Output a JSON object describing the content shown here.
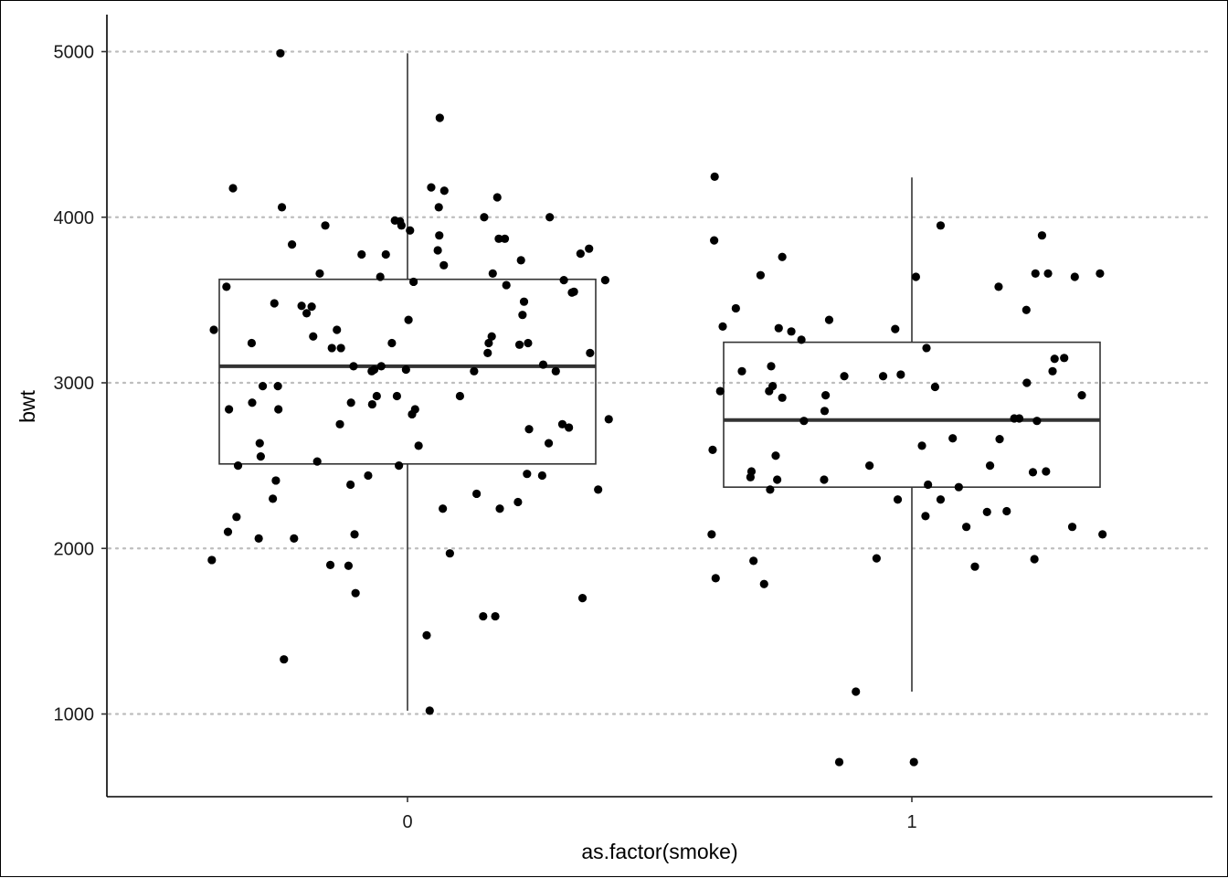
{
  "chart_data": {
    "type": "boxplot",
    "xlabel": "as.factor(smoke)",
    "ylabel": "bwt",
    "ylim": [
      500,
      5200
    ],
    "yticks": [
      1000,
      2000,
      3000,
      4000,
      5000
    ],
    "categories": [
      "0",
      "1"
    ],
    "grid": "horizontal-dotted",
    "boxes": [
      {
        "category": "0",
        "whisker_low": 1020,
        "q1": 2510,
        "median": 3100,
        "q3": 3625,
        "whisker_high": 4990
      },
      {
        "category": "1",
        "whisker_low": 1135,
        "q1": 2370,
        "median": 2775,
        "q3": 3245,
        "whisker_high": 4240
      }
    ],
    "points": [
      {
        "x": -0.388,
        "y": 1930
      },
      {
        "x": -0.384,
        "y": 3320
      },
      {
        "x": -0.359,
        "y": 3580
      },
      {
        "x": -0.356,
        "y": 2100
      },
      {
        "x": -0.354,
        "y": 2840
      },
      {
        "x": -0.346,
        "y": 4175
      },
      {
        "x": -0.339,
        "y": 2190
      },
      {
        "x": -0.336,
        "y": 2500
      },
      {
        "x": -0.309,
        "y": 3240
      },
      {
        "x": -0.308,
        "y": 2880
      },
      {
        "x": -0.295,
        "y": 2060
      },
      {
        "x": -0.293,
        "y": 2635
      },
      {
        "x": -0.291,
        "y": 2555
      },
      {
        "x": -0.287,
        "y": 2980
      },
      {
        "x": -0.267,
        "y": 2300
      },
      {
        "x": -0.264,
        "y": 3480
      },
      {
        "x": -0.261,
        "y": 2410
      },
      {
        "x": -0.257,
        "y": 2980
      },
      {
        "x": -0.256,
        "y": 2840
      },
      {
        "x": -0.252,
        "y": 4990
      },
      {
        "x": -0.249,
        "y": 4060
      },
      {
        "x": -0.245,
        "y": 1330
      },
      {
        "x": -0.229,
        "y": 3835
      },
      {
        "x": -0.225,
        "y": 2060
      },
      {
        "x": -0.21,
        "y": 3465
      },
      {
        "x": -0.2,
        "y": 3420
      },
      {
        "x": -0.19,
        "y": 3460
      },
      {
        "x": -0.187,
        "y": 3280
      },
      {
        "x": -0.179,
        "y": 2525
      },
      {
        "x": -0.174,
        "y": 3660
      },
      {
        "x": -0.163,
        "y": 3950
      },
      {
        "x": -0.153,
        "y": 1900
      },
      {
        "x": -0.15,
        "y": 3210
      },
      {
        "x": -0.14,
        "y": 3320
      },
      {
        "x": -0.134,
        "y": 2750
      },
      {
        "x": -0.132,
        "y": 3210
      },
      {
        "x": -0.117,
        "y": 1895
      },
      {
        "x": -0.113,
        "y": 2385
      },
      {
        "x": -0.112,
        "y": 2880
      },
      {
        "x": -0.107,
        "y": 3100
      },
      {
        "x": -0.105,
        "y": 2085
      },
      {
        "x": -0.103,
        "y": 1730
      },
      {
        "x": -0.091,
        "y": 3775
      },
      {
        "x": -0.078,
        "y": 2440
      },
      {
        "x": -0.071,
        "y": 3070
      },
      {
        "x": -0.07,
        "y": 2870
      },
      {
        "x": -0.066,
        "y": 3080
      },
      {
        "x": -0.061,
        "y": 2920
      },
      {
        "x": -0.054,
        "y": 3640
      },
      {
        "x": -0.052,
        "y": 3100
      },
      {
        "x": -0.043,
        "y": 3775
      },
      {
        "x": -0.031,
        "y": 3240
      },
      {
        "x": -0.025,
        "y": 3980
      },
      {
        "x": -0.021,
        "y": 2920
      },
      {
        "x": -0.017,
        "y": 2500
      },
      {
        "x": -0.015,
        "y": 3975
      },
      {
        "x": -0.012,
        "y": 3950
      },
      {
        "x": -0.003,
        "y": 3080
      },
      {
        "x": 0.002,
        "y": 3380
      },
      {
        "x": 0.005,
        "y": 3920
      },
      {
        "x": 0.009,
        "y": 2810
      },
      {
        "x": 0.012,
        "y": 3610
      },
      {
        "x": 0.015,
        "y": 2840
      },
      {
        "x": 0.022,
        "y": 2620
      },
      {
        "x": 0.038,
        "y": 1475
      },
      {
        "x": 0.044,
        "y": 1020
      },
      {
        "x": 0.047,
        "y": 4180
      },
      {
        "x": 0.06,
        "y": 3800
      },
      {
        "x": 0.062,
        "y": 4060
      },
      {
        "x": 0.063,
        "y": 3890
      },
      {
        "x": 0.064,
        "y": 4600
      },
      {
        "x": 0.07,
        "y": 2240
      },
      {
        "x": 0.072,
        "y": 3710
      },
      {
        "x": 0.073,
        "y": 4160
      },
      {
        "x": 0.084,
        "y": 1970
      },
      {
        "x": 0.104,
        "y": 2920
      },
      {
        "x": 0.132,
        "y": 3070
      },
      {
        "x": 0.137,
        "y": 2330
      },
      {
        "x": 0.15,
        "y": 1590
      },
      {
        "x": 0.152,
        "y": 4000
      },
      {
        "x": 0.159,
        "y": 3180
      },
      {
        "x": 0.161,
        "y": 3240
      },
      {
        "x": 0.167,
        "y": 3280
      },
      {
        "x": 0.169,
        "y": 3660
      },
      {
        "x": 0.174,
        "y": 1590
      },
      {
        "x": 0.178,
        "y": 4120
      },
      {
        "x": 0.181,
        "y": 3870
      },
      {
        "x": 0.183,
        "y": 2240
      },
      {
        "x": 0.193,
        "y": 3870
      },
      {
        "x": 0.196,
        "y": 3590
      },
      {
        "x": 0.219,
        "y": 2280
      },
      {
        "x": 0.222,
        "y": 3230
      },
      {
        "x": 0.225,
        "y": 3740
      },
      {
        "x": 0.228,
        "y": 3410
      },
      {
        "x": 0.231,
        "y": 3490
      },
      {
        "x": 0.237,
        "y": 2450
      },
      {
        "x": 0.239,
        "y": 3240
      },
      {
        "x": 0.241,
        "y": 2720
      },
      {
        "x": 0.267,
        "y": 2440
      },
      {
        "x": 0.269,
        "y": 3110
      },
      {
        "x": 0.28,
        "y": 2635
      },
      {
        "x": 0.282,
        "y": 4000
      },
      {
        "x": 0.294,
        "y": 3070
      },
      {
        "x": 0.307,
        "y": 2750
      },
      {
        "x": 0.31,
        "y": 3620
      },
      {
        "x": 0.32,
        "y": 2730
      },
      {
        "x": 0.326,
        "y": 3545
      },
      {
        "x": 0.33,
        "y": 3550
      },
      {
        "x": 0.343,
        "y": 3780
      },
      {
        "x": 0.347,
        "y": 1700
      },
      {
        "x": 0.36,
        "y": 3810
      },
      {
        "x": 0.362,
        "y": 3180
      },
      {
        "x": 0.378,
        "y": 2355
      },
      {
        "x": 0.392,
        "y": 3620
      },
      {
        "x": 0.399,
        "y": 2780
      },
      {
        "x": 0.603,
        "y": 2085
      },
      {
        "x": 0.605,
        "y": 2595
      },
      {
        "x": 0.608,
        "y": 3860
      },
      {
        "x": 0.609,
        "y": 4245
      },
      {
        "x": 0.611,
        "y": 1820
      },
      {
        "x": 0.62,
        "y": 2950
      },
      {
        "x": 0.625,
        "y": 3340
      },
      {
        "x": 0.651,
        "y": 3450
      },
      {
        "x": 0.663,
        "y": 3070
      },
      {
        "x": 0.68,
        "y": 2430
      },
      {
        "x": 0.682,
        "y": 2465
      },
      {
        "x": 0.686,
        "y": 1925
      },
      {
        "x": 0.7,
        "y": 3650
      },
      {
        "x": 0.707,
        "y": 1785
      },
      {
        "x": 0.717,
        "y": 2950
      },
      {
        "x": 0.719,
        "y": 2355
      },
      {
        "x": 0.721,
        "y": 3100
      },
      {
        "x": 0.724,
        "y": 2980
      },
      {
        "x": 0.73,
        "y": 2560
      },
      {
        "x": 0.733,
        "y": 2415
      },
      {
        "x": 0.736,
        "y": 3330
      },
      {
        "x": 0.743,
        "y": 2910
      },
      {
        "x": 0.743,
        "y": 3760
      },
      {
        "x": 0.761,
        "y": 3310
      },
      {
        "x": 0.781,
        "y": 3260
      },
      {
        "x": 0.786,
        "y": 2770
      },
      {
        "x": 0.826,
        "y": 2415
      },
      {
        "x": 0.827,
        "y": 2830
      },
      {
        "x": 0.829,
        "y": 2925
      },
      {
        "x": 0.836,
        "y": 3380
      },
      {
        "x": 0.856,
        "y": 710
      },
      {
        "x": 0.866,
        "y": 3040
      },
      {
        "x": 0.889,
        "y": 1135
      },
      {
        "x": 0.916,
        "y": 2500
      },
      {
        "x": 0.93,
        "y": 1940
      },
      {
        "x": 0.943,
        "y": 3040
      },
      {
        "x": 0.967,
        "y": 3325
      },
      {
        "x": 0.972,
        "y": 2295
      },
      {
        "x": 0.978,
        "y": 3050
      },
      {
        "x": 1.004,
        "y": 710
      },
      {
        "x": 1.008,
        "y": 3640
      },
      {
        "x": 1.02,
        "y": 2620
      },
      {
        "x": 1.027,
        "y": 2195
      },
      {
        "x": 1.029,
        "y": 3210
      },
      {
        "x": 1.032,
        "y": 2385
      },
      {
        "x": 1.046,
        "y": 2975
      },
      {
        "x": 1.057,
        "y": 2295
      },
      {
        "x": 1.057,
        "y": 3950
      },
      {
        "x": 1.081,
        "y": 2665
      },
      {
        "x": 1.093,
        "y": 2370
      },
      {
        "x": 1.108,
        "y": 2130
      },
      {
        "x": 1.125,
        "y": 1890
      },
      {
        "x": 1.149,
        "y": 2220
      },
      {
        "x": 1.155,
        "y": 2500
      },
      {
        "x": 1.172,
        "y": 3580
      },
      {
        "x": 1.174,
        "y": 2660
      },
      {
        "x": 1.188,
        "y": 2225
      },
      {
        "x": 1.203,
        "y": 2785
      },
      {
        "x": 1.213,
        "y": 2785
      },
      {
        "x": 1.227,
        "y": 3440
      },
      {
        "x": 1.228,
        "y": 3000
      },
      {
        "x": 1.24,
        "y": 2460
      },
      {
        "x": 1.243,
        "y": 1935
      },
      {
        "x": 1.245,
        "y": 3660
      },
      {
        "x": 1.248,
        "y": 2770
      },
      {
        "x": 1.258,
        "y": 3890
      },
      {
        "x": 1.266,
        "y": 2465
      },
      {
        "x": 1.27,
        "y": 3660
      },
      {
        "x": 1.279,
        "y": 3070
      },
      {
        "x": 1.283,
        "y": 3145
      },
      {
        "x": 1.302,
        "y": 3150
      },
      {
        "x": 1.318,
        "y": 2130
      },
      {
        "x": 1.323,
        "y": 3640
      },
      {
        "x": 1.337,
        "y": 2925
      },
      {
        "x": 1.373,
        "y": 3660
      },
      {
        "x": 1.378,
        "y": 2085
      }
    ]
  }
}
